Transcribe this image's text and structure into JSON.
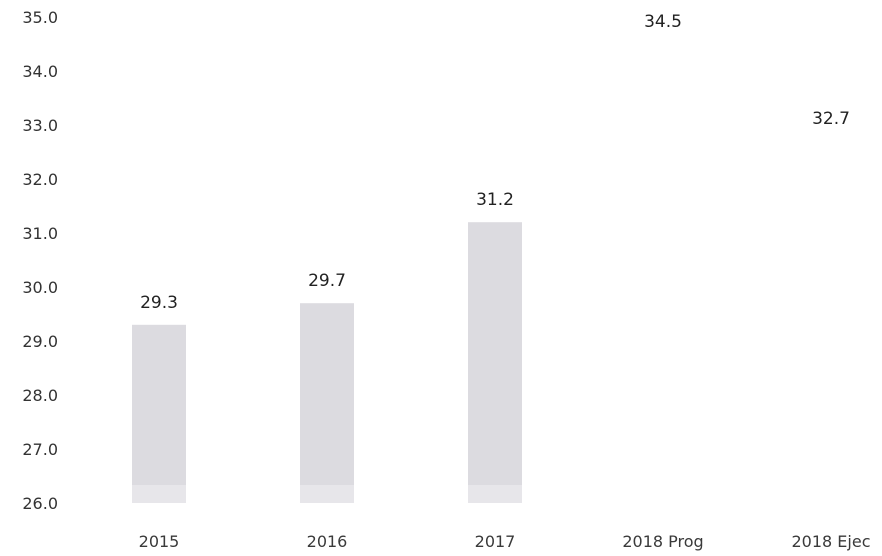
{
  "chart_data": {
    "type": "bar",
    "categories": [
      "2015",
      "2016",
      "2017",
      "2018 Prog",
      "2018 Ejec"
    ],
    "values": [
      29.3,
      29.7,
      31.2,
      34.5,
      32.7
    ],
    "value_labels": [
      "29.3",
      "29.7",
      "31.2",
      "34.5",
      "32.7"
    ],
    "ylim": [
      26.0,
      35.0
    ],
    "yticks": [
      "35.0",
      "34.0",
      "33.0",
      "32.0",
      "31.0",
      "30.0",
      "29.0",
      "28.0",
      "27.0",
      "26.0"
    ],
    "visible_bars": [
      true,
      true,
      true,
      false,
      false
    ],
    "grid": false,
    "colors": {
      "bar": "#dcdbe0",
      "bar_base": "#e7e6ea"
    }
  }
}
